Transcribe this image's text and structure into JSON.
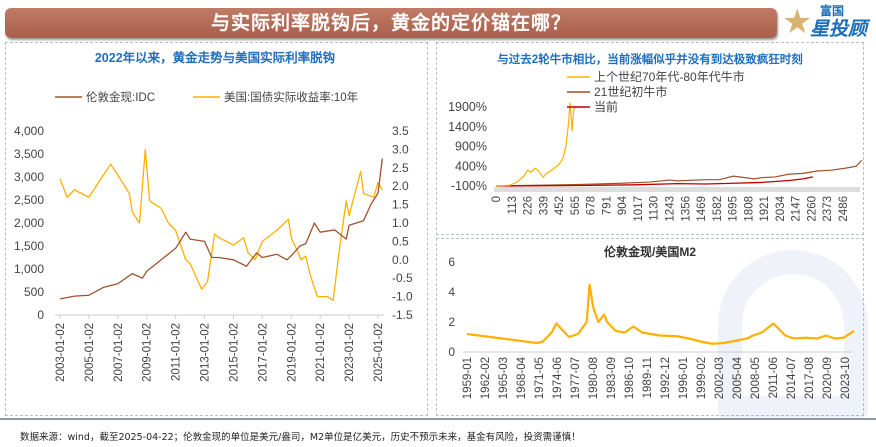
{
  "header": {
    "title": "与实际利率脱钩后，黄金的定价锚在哪？",
    "logo_top": "富国",
    "logo_main": "星投顾"
  },
  "footer": "数据来源：wind，截至2025-04-22；伦敦金现的单位是美元/盎司，M2单位是亿美元，历史不预示未来，基金有风险，投资需谨慎！",
  "colors": {
    "gold": "#a0522d",
    "yield": "#ffb000",
    "current": "#c00000",
    "title": "#1f6fbf"
  },
  "chart_data": [
    {
      "type": "line",
      "title": "2022年以来，黄金走势与美国实际利率脱钩",
      "series": [
        {
          "name": "伦敦金现:IDC",
          "axis": "left",
          "color": "#a0522d",
          "x": [
            2003,
            2004,
            2005,
            2006,
            2007,
            2008,
            2008.7,
            2009,
            2010,
            2011,
            2011.7,
            2012,
            2013,
            2013.5,
            2014,
            2015,
            2015.9,
            2016.6,
            2017,
            2018,
            2018.7,
            2019,
            2019.6,
            2020,
            2020.6,
            2021,
            2022,
            2022.8,
            2023,
            2024,
            2024.5,
            2025,
            2025.3
          ],
          "y": [
            350,
            410,
            430,
            600,
            680,
            900,
            800,
            950,
            1200,
            1450,
            1800,
            1650,
            1600,
            1250,
            1250,
            1200,
            1060,
            1350,
            1250,
            1320,
            1200,
            1290,
            1500,
            1550,
            2000,
            1800,
            1850,
            1650,
            1950,
            2050,
            2400,
            2650,
            3400
          ]
        },
        {
          "name": "美国:国债实际收益率:10年",
          "axis": "right",
          "color": "#ffb000",
          "x": [
            2003,
            2003.5,
            2004,
            2005,
            2006,
            2006.5,
            2007,
            2007.8,
            2008,
            2008.5,
            2008.9,
            2009.2,
            2010,
            2010.5,
            2011,
            2011.7,
            2012,
            2012.8,
            2013.2,
            2013.7,
            2014,
            2015,
            2015.7,
            2016,
            2016.5,
            2017,
            2018,
            2018.8,
            2019,
            2019.7,
            2020,
            2020.3,
            2020.8,
            2021.5,
            2021.9,
            2022.3,
            2022.8,
            2023,
            2023.8,
            2024,
            2024.7,
            2025,
            2025.3
          ],
          "y": [
            2.2,
            1.7,
            1.9,
            1.7,
            2.3,
            2.6,
            2.3,
            1.8,
            1.3,
            1.0,
            3.0,
            1.6,
            1.4,
            1.0,
            0.8,
            0.0,
            -0.1,
            -0.8,
            -0.6,
            0.7,
            0.6,
            0.4,
            0.6,
            0.2,
            0.0,
            0.5,
            0.8,
            1.1,
            0.6,
            0.0,
            0.1,
            -0.4,
            -1.0,
            -1.0,
            -1.1,
            0.2,
            1.6,
            1.2,
            2.4,
            1.8,
            1.7,
            2.1,
            1.9
          ]
        }
      ],
      "xticks": [
        "2003-01-02",
        "2005-01-02",
        "2007-01-02",
        "2009-01-02",
        "2011-01-02",
        "2013-01-02",
        "2015-01-02",
        "2017-01-02",
        "2019-01-02",
        "2021-01-02",
        "2023-01-02",
        "2025-01-02"
      ],
      "yleft": {
        "ticks": [
          "0",
          "500",
          "1,000",
          "1,500",
          "2,000",
          "2,500",
          "3,000",
          "3,500",
          "4,000"
        ],
        "range": [
          0,
          4000
        ]
      },
      "yright": {
        "ticks": [
          "-1.5",
          "-1.0",
          "-0.5",
          "0.0",
          "0.5",
          "1.0",
          "1.5",
          "2.0",
          "2.5",
          "3.0",
          "3.5"
        ],
        "range": [
          -1.5,
          3.5
        ]
      },
      "legend": "top"
    },
    {
      "type": "line",
      "title": "与过去2轮牛市相比，当前涨幅似乎并没有到达极致疯狂时刻",
      "series": [
        {
          "name": "上个世纪70年代-80年代牛市",
          "color": "#ffb000",
          "x": [
            0,
            100,
            150,
            200,
            226,
            250,
            280,
            300,
            339,
            360,
            400,
            452,
            480,
            500,
            520,
            530,
            540,
            545,
            550,
            555,
            570
          ],
          "y": [
            -100,
            -80,
            0,
            150,
            300,
            250,
            350,
            300,
            120,
            220,
            300,
            450,
            600,
            900,
            1500,
            2000,
            1600,
            1300,
            1500,
            1800,
            1900
          ]
        },
        {
          "name": "21世纪初牛市",
          "color": "#a0522d",
          "x": [
            0,
            300,
            600,
            900,
            1100,
            1243,
            1300,
            1500,
            1600,
            1700,
            1850,
            1900,
            2000,
            2100,
            2200,
            2300,
            2400,
            2500,
            2580,
            2620
          ],
          "y": [
            -100,
            -80,
            -60,
            -30,
            0,
            50,
            30,
            60,
            60,
            150,
            80,
            110,
            130,
            200,
            220,
            280,
            300,
            350,
            400,
            550
          ]
        },
        {
          "name": "当前",
          "color": "#c00000",
          "x": [
            0,
            500,
            1000,
            1300,
            1500,
            1700,
            1900,
            2100,
            2200,
            2270
          ],
          "y": [
            -100,
            -90,
            -70,
            -40,
            -50,
            -30,
            -10,
            40,
            80,
            130
          ]
        }
      ],
      "xticks": [
        "0",
        "113",
        "226",
        "339",
        "452",
        "565",
        "678",
        "791",
        "904",
        "1017",
        "1130",
        "1243",
        "1356",
        "1469",
        "1582",
        "1695",
        "1808",
        "1921",
        "2034",
        "2147",
        "2260",
        "2373",
        "2486"
      ],
      "yticks": [
        "-100%",
        "400%",
        "900%",
        "1400%",
        "1900%"
      ],
      "yrange": [
        -100,
        1900
      ],
      "legend": "top"
    },
    {
      "type": "line",
      "title": "伦敦金现/美国M2",
      "series": [
        {
          "color": "#ffb000",
          "x": [
            1959,
            1962,
            1965,
            1968,
            1971,
            1972,
            1973.5,
            1974.3,
            1975.5,
            1976.5,
            1978,
            1979.5,
            1980,
            1980.6,
            1981.5,
            1982.5,
            1983,
            1984.5,
            1986,
            1987.5,
            1989,
            1992,
            1995,
            1997,
            1999,
            2001,
            2003,
            2005,
            2007,
            2008,
            2009.5,
            2011.5,
            2012.5,
            2013.5,
            2015,
            2017,
            2019,
            2020.5,
            2022,
            2023.5,
            2025.3
          ],
          "y": [
            1.2,
            1.05,
            0.9,
            0.75,
            0.6,
            0.7,
            1.3,
            1.9,
            1.4,
            1.0,
            1.2,
            2.0,
            4.5,
            3.0,
            2.0,
            2.5,
            2.0,
            1.4,
            1.3,
            1.7,
            1.3,
            1.1,
            1.05,
            0.9,
            0.7,
            0.55,
            0.6,
            0.75,
            0.9,
            1.1,
            1.3,
            1.9,
            1.5,
            1.1,
            0.9,
            0.95,
            0.9,
            1.1,
            0.9,
            0.95,
            1.4
          ]
        }
      ],
      "xticks": [
        "1959-01",
        "1962-02",
        "1965-03",
        "1968-04",
        "1971-05",
        "1974-06",
        "1977-07",
        "1980-08",
        "1983-09",
        "1986-10",
        "1989-11",
        "1992-12",
        "1996-01",
        "1999-02",
        "2002-03",
        "2005-04",
        "2008-05",
        "2011-06",
        "2014-07",
        "2017-08",
        "2020-09",
        "2023-10"
      ],
      "yticks": [
        "0",
        "2",
        "4",
        "6"
      ],
      "yrange": [
        0,
        6
      ]
    }
  ]
}
